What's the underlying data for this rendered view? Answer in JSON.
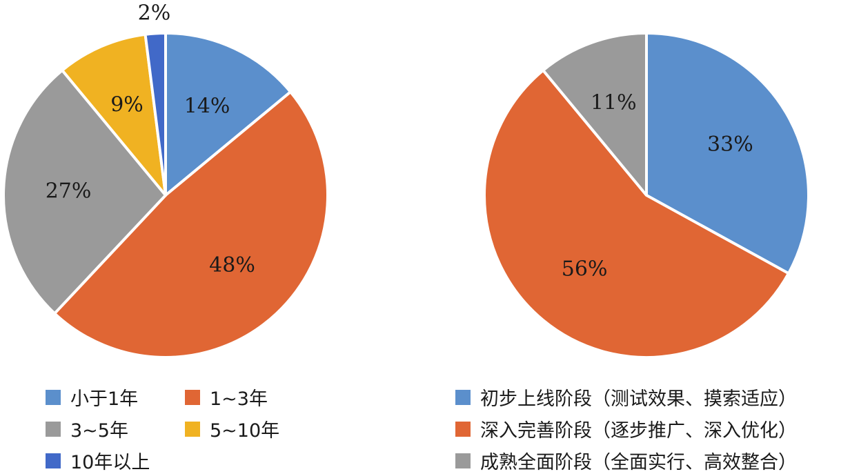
{
  "chart_data": [
    {
      "type": "pie",
      "title": "",
      "categories": [
        "小于1年",
        "1~3年",
        "3~5年",
        "5~10年",
        "10年以上"
      ],
      "values": [
        14,
        48,
        27,
        9,
        2
      ],
      "labels": [
        "14%",
        "48%",
        "27%",
        "9%",
        "2%"
      ],
      "colors": [
        "#5b8fcc",
        "#e06634",
        "#9a9a9a",
        "#f0b222",
        "#4169c8"
      ],
      "legend": "bottom",
      "start_angle": "12 o'clock, clockwise"
    },
    {
      "type": "pie",
      "title": "",
      "categories": [
        "初步上线阶段（测试效果、摸索适应）",
        "深入完善阶段（逐步推广、深入优化）",
        "成熟全面阶段（全面实行、高效整合）"
      ],
      "values": [
        33,
        56,
        11
      ],
      "labels": [
        "33%",
        "56%",
        "11%"
      ],
      "colors": [
        "#5b8fcc",
        "#e06634",
        "#9a9a9a"
      ],
      "legend": "bottom",
      "start_angle": "12 o'clock, clockwise"
    }
  ]
}
